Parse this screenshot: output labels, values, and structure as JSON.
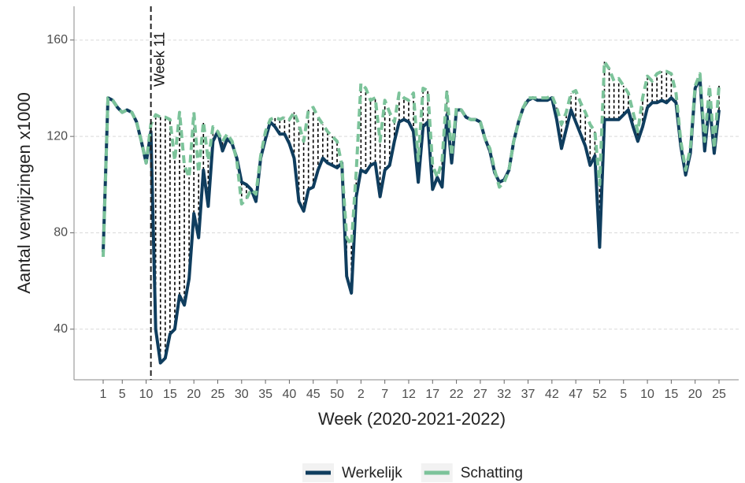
{
  "chart_data": {
    "type": "line",
    "xlabel": "Week (2020-2021-2022)",
    "ylabel": "Aantal verwijzingen x1000",
    "categories": [
      "1",
      null,
      null,
      null,
      "5",
      null,
      null,
      null,
      null,
      "10",
      null,
      null,
      null,
      null,
      "15",
      null,
      null,
      null,
      null,
      "20",
      null,
      null,
      null,
      null,
      "25",
      null,
      null,
      null,
      null,
      "30",
      null,
      null,
      null,
      null,
      "35",
      null,
      null,
      null,
      null,
      "40",
      null,
      null,
      null,
      null,
      "45",
      null,
      null,
      null,
      null,
      "50",
      null,
      null,
      null,
      null,
      "2",
      null,
      null,
      null,
      null,
      "7",
      null,
      null,
      null,
      null,
      "12",
      null,
      null,
      null,
      null,
      "17",
      null,
      null,
      null,
      null,
      "22",
      null,
      null,
      null,
      null,
      "27",
      null,
      null,
      null,
      null,
      "32",
      null,
      null,
      null,
      null,
      "37",
      null,
      null,
      null,
      null,
      "42",
      null,
      null,
      null,
      null,
      "47",
      null,
      null,
      null,
      null,
      "52",
      null,
      null,
      null,
      null,
      "5",
      null,
      null,
      null,
      null,
      "10",
      null,
      null,
      null,
      null,
      "15",
      null,
      null,
      null,
      null,
      "20",
      null,
      null,
      null,
      null,
      "25"
    ],
    "series": [
      {
        "name": "Werkelijk",
        "color": "#0f3d5e",
        "values": [
          72,
          136,
          135,
          132,
          130,
          131,
          130,
          126,
          118,
          109,
          122,
          40,
          26,
          28,
          38,
          40,
          54,
          50,
          61,
          88,
          78,
          106,
          91,
          118,
          122,
          114,
          119,
          117,
          111,
          101,
          100,
          98,
          93,
          111,
          119,
          126,
          124,
          121,
          121,
          117,
          111,
          93,
          89,
          98,
          99,
          106,
          111,
          109,
          108,
          107,
          109,
          62,
          55,
          95,
          106,
          105,
          108,
          109,
          95,
          106,
          108,
          118,
          126,
          127,
          126,
          122,
          101,
          124,
          126,
          98,
          103,
          99,
          129,
          109,
          131,
          131,
          128,
          127,
          127,
          126,
          119,
          114,
          105,
          101,
          102,
          106,
          118,
          126,
          132,
          135,
          136,
          135,
          135,
          135,
          136,
          127,
          115,
          123,
          131,
          126,
          121,
          116,
          108,
          112,
          74,
          127,
          127,
          127,
          127,
          129,
          131,
          124,
          118,
          124,
          132,
          134,
          134,
          135,
          134,
          136,
          134,
          116,
          104,
          113,
          140,
          144,
          114,
          134,
          113,
          131
        ]
      },
      {
        "name": "Schatting",
        "color": "#7cc39a",
        "values": [
          70,
          136,
          135,
          132,
          130,
          131,
          130,
          126,
          118,
          109,
          125,
          129,
          128,
          128,
          127,
          110,
          130,
          108,
          103,
          130,
          105,
          126,
          110,
          124,
          122,
          118,
          121,
          118,
          110,
          92,
          94,
          98,
          96,
          112,
          122,
          127,
          128,
          127,
          128,
          127,
          130,
          125,
          118,
          131,
          132,
          128,
          125,
          122,
          120,
          118,
          108,
          78,
          75,
          105,
          142,
          140,
          135,
          136,
          118,
          135,
          130,
          126,
          138,
          136,
          135,
          138,
          110,
          140,
          139,
          108,
          103,
          110,
          139,
          112,
          132,
          131,
          128,
          127,
          127,
          126,
          119,
          115,
          106,
          99,
          101,
          106,
          118,
          126,
          132,
          136,
          136,
          136,
          136,
          136,
          137,
          132,
          125,
          130,
          138,
          139,
          134,
          130,
          125,
          122,
          100,
          151,
          148,
          143,
          144,
          141,
          138,
          130,
          122,
          136,
          145,
          143,
          146,
          147,
          147,
          146,
          138,
          118,
          106,
          115,
          141,
          146,
          118,
          141,
          115,
          141
        ]
      }
    ],
    "ylim": [
      19,
      174
    ],
    "yticks": [
      40,
      80,
      120,
      160
    ],
    "grid": true,
    "legend": "bottom",
    "vline": {
      "label": "Week 11",
      "index": 10
    }
  }
}
